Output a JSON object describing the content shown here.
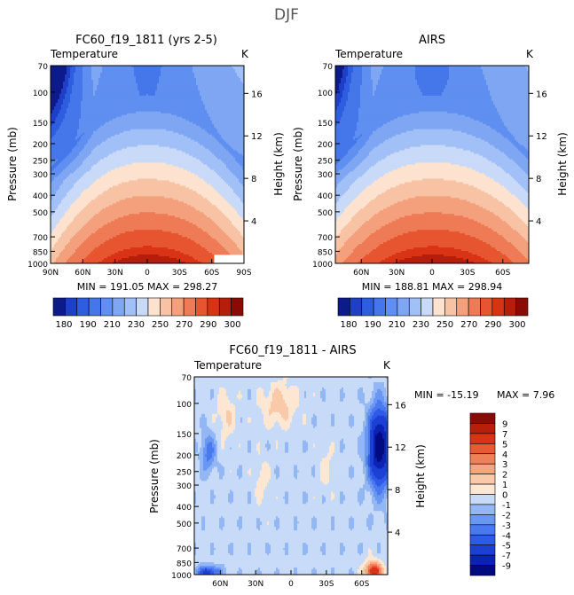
{
  "figure_title": "DJF",
  "chart_data": [
    {
      "type": "heatmap",
      "title": "FC60_f19_1811 (yrs 2-5)",
      "variable": "Temperature",
      "units": "K",
      "ylabel": "Pressure (mb)",
      "y2label": "Height (km)",
      "x_ticks": [
        "90N",
        "60N",
        "30N",
        "0",
        "30S",
        "60S",
        "90S"
      ],
      "y_ticks": [
        "70",
        "100",
        "150",
        "200",
        "250",
        "300",
        "400",
        "500",
        "700",
        "850",
        "1000"
      ],
      "y2_ticks": [
        "16",
        "12",
        "8",
        "4"
      ],
      "stats": "MIN = 191.05   MAX = 298.27",
      "colorbar_labels": [
        "180",
        "190",
        "210",
        "230",
        "250",
        "270",
        "290",
        "300"
      ],
      "levels": [
        180,
        185,
        190,
        200,
        210,
        220,
        230,
        240,
        250,
        260,
        270,
        280,
        290,
        295,
        300
      ],
      "palette": [
        "#0d1a8a",
        "#1f3fc8",
        "#2e5ee0",
        "#4577ea",
        "#5f8ff0",
        "#7ea6f3",
        "#a1c0f7",
        "#c9daf9",
        "#fde2cf",
        "#f8c3a5",
        "#f4a07c",
        "#ee7b55",
        "#e75530",
        "#d93316",
        "#b51e0b",
        "#8a0b05"
      ],
      "max_lat_north": 90,
      "max_lat_south": 90
    },
    {
      "type": "heatmap",
      "title": "AIRS",
      "variable": "Temperature",
      "units": "K",
      "ylabel": "Pressure (mb)",
      "y2label": "Height (km)",
      "x_ticks": [
        "60N",
        "30N",
        "0",
        "30S",
        "60S"
      ],
      "y_ticks": [
        "70",
        "100",
        "150",
        "200",
        "250",
        "300",
        "400",
        "500",
        "700",
        "850",
        "1000"
      ],
      "y2_ticks": [
        "16",
        "12",
        "8",
        "4"
      ],
      "stats": "MIN = 188.81   MAX = 298.94",
      "colorbar_labels": [
        "180",
        "190",
        "210",
        "230",
        "250",
        "270",
        "290",
        "300"
      ],
      "levels": [
        180,
        185,
        190,
        200,
        210,
        220,
        230,
        240,
        250,
        260,
        270,
        280,
        290,
        295,
        300
      ],
      "palette": [
        "#0d1a8a",
        "#1f3fc8",
        "#2e5ee0",
        "#4577ea",
        "#5f8ff0",
        "#7ea6f3",
        "#a1c0f7",
        "#c9daf9",
        "#fde2cf",
        "#f8c3a5",
        "#f4a07c",
        "#ee7b55",
        "#e75530",
        "#d93316",
        "#b51e0b",
        "#8a0b05"
      ]
    },
    {
      "type": "heatmap",
      "title": "FC60_f19_1811 - AIRS",
      "variable": "Temperature",
      "units": "K",
      "ylabel": "Pressure (mb)",
      "y2label": "Height (km)",
      "x_ticks": [
        "60N",
        "30N",
        "0",
        "30S",
        "60S"
      ],
      "y_ticks": [
        "70",
        "100",
        "150",
        "200",
        "250",
        "300",
        "400",
        "500",
        "700",
        "850",
        "1000"
      ],
      "y2_ticks": [
        "16",
        "12",
        "8",
        "4"
      ],
      "stats_min": "MIN = -15.19",
      "stats_max": "MAX =    7.96",
      "colorbar_labels": [
        "9",
        "7",
        "5",
        "4",
        "3",
        "2",
        "1",
        "0",
        "-1",
        "-2",
        "-3",
        "-4",
        "-5",
        "-7",
        "-9"
      ],
      "levels": [
        -9,
        -7,
        -5,
        -4,
        -3,
        -2,
        -1,
        0,
        1,
        2,
        3,
        4,
        5,
        7,
        9
      ],
      "palette": [
        "#000b80",
        "#0a23b4",
        "#1c3fd4",
        "#2e5ae6",
        "#4a78ee",
        "#6a97f2",
        "#93b6f5",
        "#c7dbf8",
        "#fde6d2",
        "#f9c9a9",
        "#f5a680",
        "#ef8158",
        "#e75a33",
        "#d93316",
        "#b71f0b",
        "#8a0b05"
      ]
    }
  ]
}
